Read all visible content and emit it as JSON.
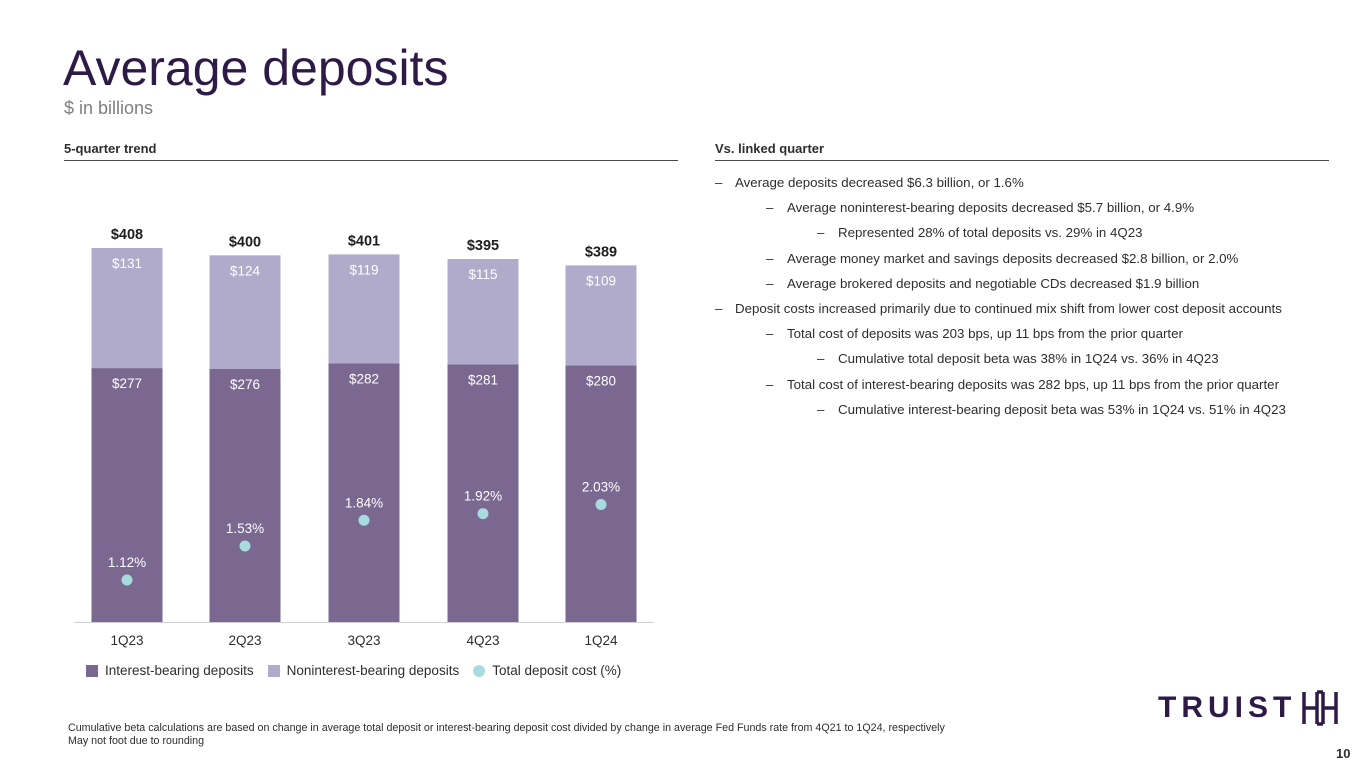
{
  "header": {
    "title": "Average deposits",
    "subtitle": "$ in billions"
  },
  "left_section": {
    "heading": "5-quarter trend"
  },
  "right_section": {
    "heading": "Vs. linked quarter",
    "dash": "–",
    "bullets": [
      {
        "level": 0,
        "text": "Average deposits decreased $6.3 billion, or 1.6%"
      },
      {
        "level": 1,
        "text": "Average noninterest-bearing deposits decreased $5.7 billion, or 4.9%"
      },
      {
        "level": 2,
        "text": "Represented 28% of total deposits vs. 29% in 4Q23"
      },
      {
        "level": 1,
        "text": "Average money market and savings deposits decreased $2.8 billion, or 2.0%"
      },
      {
        "level": 1,
        "text": "Average brokered deposits and negotiable CDs decreased $1.9 billion"
      },
      {
        "level": 0,
        "text": "Deposit costs increased primarily due to continued mix shift from lower cost deposit accounts"
      },
      {
        "level": 1,
        "text": "Total cost of deposits was 203 bps, up 11 bps from the prior quarter"
      },
      {
        "level": 2,
        "text": "Cumulative total deposit beta was 38% in 1Q24 vs. 36% in 4Q23"
      },
      {
        "level": 1,
        "text": "Total cost of interest-bearing deposits was 282 bps, up 11 bps from the prior quarter"
      },
      {
        "level": 2,
        "text": "Cumulative interest-bearing deposit beta was 53% in 1Q24 vs. 51% in 4Q23"
      }
    ]
  },
  "chart_data": {
    "type": "bar",
    "stacked": true,
    "categories": [
      "1Q23",
      "2Q23",
      "3Q23",
      "4Q23",
      "1Q24"
    ],
    "totals": [
      408,
      400,
      401,
      395,
      389
    ],
    "total_labels": [
      "$408",
      "$400",
      "$401",
      "$395",
      "$389"
    ],
    "series": [
      {
        "name": "Interest-bearing deposits",
        "values": [
          277,
          276,
          282,
          281,
          280
        ],
        "labels": [
          "$277",
          "$276",
          "$282",
          "$281",
          "$280"
        ],
        "color": "#7a6891"
      },
      {
        "name": "Noninterest-bearing deposits",
        "values": [
          131,
          124,
          119,
          115,
          109
        ],
        "labels": [
          "$131",
          "$124",
          "$119",
          "$115",
          "$109"
        ],
        "color": "#b1abcb"
      }
    ],
    "line_series": {
      "name": "Total deposit cost (%)",
      "values": [
        1.12,
        1.53,
        1.84,
        1.92,
        2.03
      ],
      "labels": [
        "1.12%",
        "1.53%",
        "1.84%",
        "1.92%",
        "2.03%"
      ],
      "color": "#a8dbde"
    },
    "ylim": [
      0,
      408
    ],
    "legend_position": "bottom",
    "grid": false
  },
  "footnotes": [
    "Cumulative beta calculations are based on change in average total deposit or interest-bearing deposit cost divided by change in average Fed Funds rate from 4Q21 to 1Q24, respectively",
    "May not foot due to rounding"
  ],
  "brand": {
    "name": "TRUIST",
    "color": "#2e1a47"
  },
  "page_number": "10"
}
